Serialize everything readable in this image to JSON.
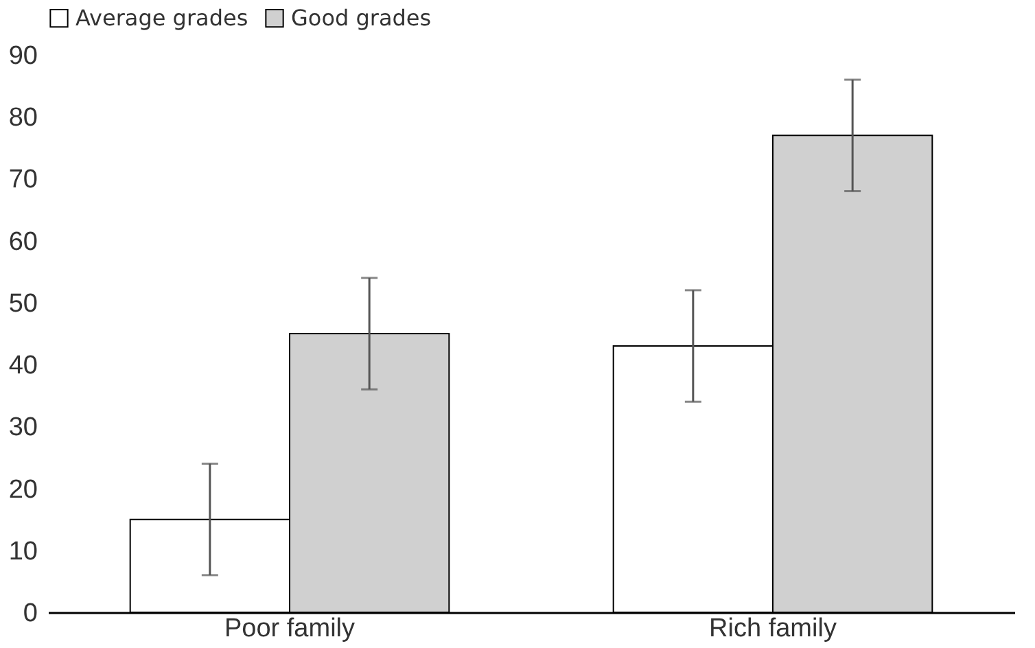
{
  "chart_data": {
    "type": "bar",
    "categories": [
      "Poor family",
      "Rich family"
    ],
    "series": [
      {
        "name": "Average grades",
        "color": "#ffffff",
        "values": [
          15,
          43
        ],
        "errors": [
          9,
          9
        ]
      },
      {
        "name": "Good grades",
        "color": "#d0d0d0",
        "values": [
          45,
          77
        ],
        "errors": [
          9,
          9
        ]
      }
    ],
    "ylim": [
      0,
      90
    ],
    "yticks": [
      0,
      10,
      20,
      30,
      40,
      50,
      60,
      70,
      80,
      90
    ],
    "grid": false,
    "legend": "top"
  }
}
